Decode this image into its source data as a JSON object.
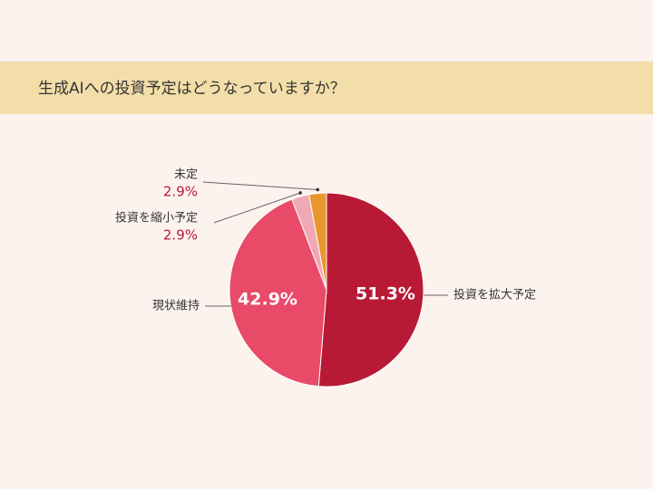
{
  "chart_data": {
    "type": "pie",
    "title": "生成AIへの投資予定はどうなっていますか？",
    "categories": [
      "投資を拡大予定",
      "現状維持",
      "投資を縮小予定",
      "未定"
    ],
    "values": [
      51.3,
      42.9,
      2.9,
      2.9
    ],
    "value_labels": [
      "51.3%",
      "42.9%",
      "2.9%",
      "2.9%"
    ],
    "colors": [
      "#b81a35",
      "#e84a68",
      "#f0a8b4",
      "#e8972e"
    ]
  }
}
